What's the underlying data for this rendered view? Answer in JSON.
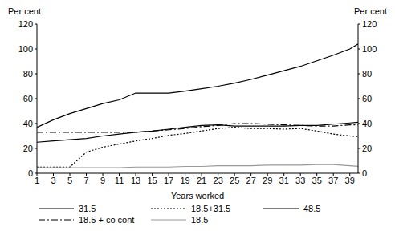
{
  "chart_data": {
    "type": "line",
    "x_label": "Years worked",
    "y_label": "Per cent",
    "y2_label": "Per cent",
    "x": [
      1,
      3,
      5,
      7,
      9,
      11,
      13,
      15,
      17,
      19,
      21,
      23,
      25,
      27,
      29,
      31,
      33,
      35,
      37,
      39,
      40
    ],
    "xlim": [
      1,
      40
    ],
    "xticks": [
      1,
      3,
      5,
      7,
      9,
      11,
      13,
      15,
      17,
      19,
      21,
      23,
      25,
      27,
      29,
      31,
      33,
      35,
      37,
      39
    ],
    "ylim": [
      0,
      120
    ],
    "yticks": [
      0,
      20,
      40,
      60,
      80,
      100,
      120
    ],
    "y2lim": [
      0,
      120
    ],
    "y2ticks": [
      0,
      20,
      40,
      60,
      80,
      100,
      120
    ],
    "grid": false,
    "series": [
      {
        "name": "31.5",
        "color": "#000000",
        "line_style": "solid",
        "values": [
          37,
          43,
          48,
          52,
          56,
          59,
          64.5,
          64.5,
          64.5,
          66,
          68,
          70,
          72.5,
          75.5,
          79,
          82.5,
          86,
          90.5,
          95,
          100,
          104
        ]
      },
      {
        "name": "18.5+31.5",
        "color": "#000000",
        "line_style": "dotted",
        "values": [
          5,
          5,
          5,
          17,
          21,
          23.5,
          26,
          28,
          30.5,
          32,
          34,
          36,
          37,
          36,
          36,
          35.5,
          36,
          34,
          31.5,
          30,
          29.5
        ]
      },
      {
        "name": "48.5",
        "color": "#000000",
        "line_style": "solid",
        "values": [
          25,
          26,
          27,
          28,
          30,
          31.5,
          33,
          34,
          35.5,
          37,
          38.5,
          39,
          38,
          38,
          38,
          38,
          38.5,
          38.5,
          39.5,
          40.5,
          41
        ]
      },
      {
        "name": "18.5 + co cont",
        "color": "#000000",
        "line_style": "dashdot",
        "values": [
          33,
          33,
          33,
          33,
          33,
          33,
          33,
          34,
          35,
          36,
          37.5,
          38.5,
          40,
          40,
          39.5,
          39,
          38.5,
          38,
          38,
          39,
          39
        ]
      },
      {
        "name": "18.5",
        "color": "#999999",
        "line_style": "solid",
        "values": [
          4.5,
          4.5,
          4.5,
          4.5,
          4.5,
          4.5,
          5,
          5,
          5,
          5.5,
          5.5,
          6,
          6,
          6,
          6.5,
          6.5,
          6.5,
          7,
          7,
          6,
          5.5
        ]
      }
    ]
  }
}
